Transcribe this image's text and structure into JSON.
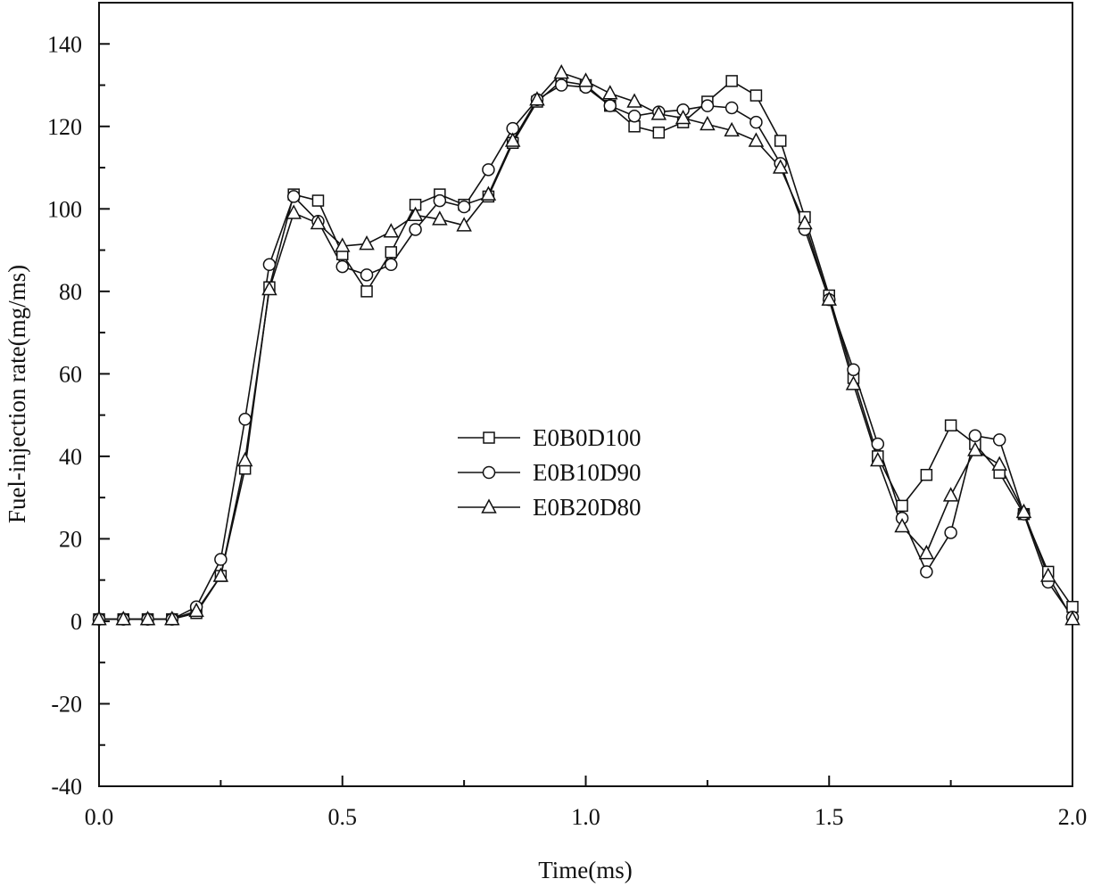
{
  "chart_data": {
    "type": "line",
    "title": "",
    "xlabel": "Time(ms)",
    "ylabel": "Fuel-injection rate(mg/ms)",
    "xlim": [
      0.0,
      2.0
    ],
    "ylim": [
      -40,
      150
    ],
    "xticks": [
      0.0,
      0.5,
      1.0,
      1.5,
      2.0
    ],
    "xtick_labels": [
      "0.0",
      "0.5",
      "1.0",
      "1.5",
      "2.0"
    ],
    "yticks": [
      -40,
      -20,
      0,
      20,
      40,
      60,
      80,
      100,
      120,
      140
    ],
    "ytick_labels": [
      "-40",
      "-20",
      "0",
      "20",
      "40",
      "60",
      "80",
      "100",
      "120",
      "140"
    ],
    "grid": false,
    "legend_position": "center",
    "x": [
      0.0,
      0.05,
      0.1,
      0.15,
      0.2,
      0.25,
      0.3,
      0.35,
      0.4,
      0.45,
      0.5,
      0.55,
      0.6,
      0.65,
      0.7,
      0.75,
      0.8,
      0.85,
      0.9,
      0.95,
      1.0,
      1.05,
      1.1,
      1.15,
      1.2,
      1.25,
      1.3,
      1.35,
      1.4,
      1.45,
      1.5,
      1.55,
      1.6,
      1.65,
      1.7,
      1.75,
      1.8,
      1.85,
      1.9,
      1.95,
      2.0
    ],
    "series": [
      {
        "name": "E0B0D100",
        "marker": "square",
        "values": [
          0.5,
          0.5,
          0.5,
          0.5,
          2,
          11,
          37,
          81,
          103.5,
          102,
          89,
          80,
          89.5,
          101,
          103.5,
          101,
          103,
          116,
          126,
          131,
          130,
          125,
          120,
          118.5,
          121,
          126,
          131,
          127.5,
          116.5,
          98,
          79,
          59,
          40,
          28,
          35.5,
          47.5,
          43,
          36,
          26,
          12,
          3.5
        ]
      },
      {
        "name": "E0B10D90",
        "marker": "circle",
        "values": [
          0.5,
          0.5,
          0.5,
          0.5,
          3.5,
          15,
          49,
          86.5,
          103,
          97,
          86,
          84,
          86.5,
          95,
          102,
          100.5,
          109.5,
          119.5,
          126.5,
          130,
          129.5,
          125,
          122.5,
          123.5,
          124,
          125,
          124.5,
          121,
          111,
          95,
          78,
          61,
          43,
          25,
          12,
          21.5,
          45,
          44,
          26,
          9.5,
          1
        ]
      },
      {
        "name": "E0B20D80",
        "marker": "triangle",
        "values": [
          0.5,
          0.5,
          0.5,
          0.5,
          2.5,
          11,
          39,
          80.5,
          99,
          96.5,
          91,
          91.5,
          94.5,
          98.5,
          97.5,
          96,
          103.5,
          116.5,
          126.5,
          133,
          131,
          128,
          126,
          123,
          122,
          120.5,
          119,
          116.5,
          110,
          96.5,
          78,
          57.5,
          39,
          23,
          16.5,
          30.5,
          41.5,
          38,
          26.5,
          11,
          0.5
        ]
      }
    ]
  }
}
